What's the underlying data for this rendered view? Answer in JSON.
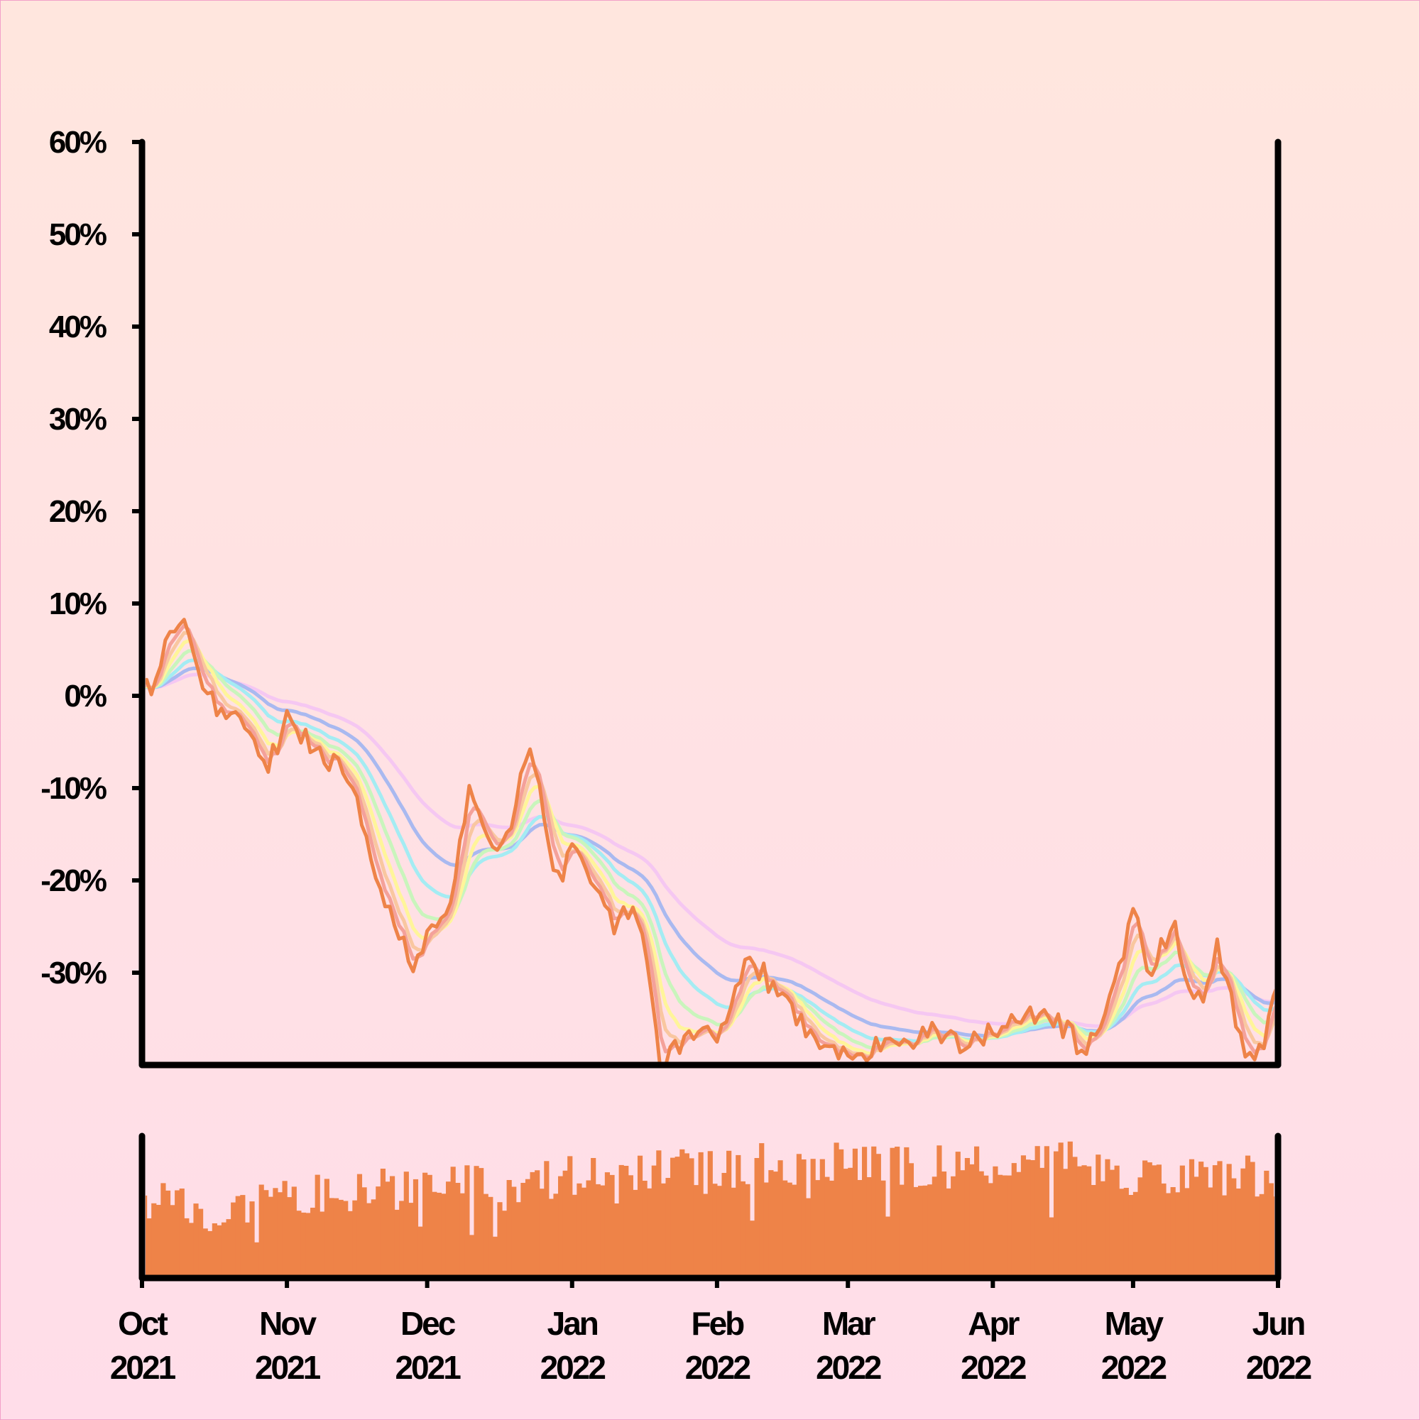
{
  "page": {
    "background_top": "#ffe6de",
    "background_bottom": "#ffdde9",
    "border": "#f2a0c8"
  },
  "chart_data": {
    "type": "line",
    "title": "",
    "xlabel": "",
    "ylabel": "",
    "x_range": [
      "2021-10-01",
      "2022-06-01"
    ],
    "ylim": [
      -40,
      60
    ],
    "y_ticks": [
      60,
      50,
      40,
      30,
      20,
      10,
      0,
      -10,
      -20,
      -30
    ],
    "y_tick_labels": [
      "60%",
      "50%",
      "40%",
      "30%",
      "20%",
      "10%",
      "0%",
      "-10%",
      "-20%",
      "-30%"
    ],
    "x_ticks": [
      {
        "date": "2021-10-01",
        "month": "Oct",
        "year": "2021"
      },
      {
        "date": "2021-11-01",
        "month": "Nov",
        "year": "2021"
      },
      {
        "date": "2021-12-01",
        "month": "Dec",
        "year": "2021"
      },
      {
        "date": "2022-01-01",
        "month": "Jan",
        "year": "2022"
      },
      {
        "date": "2022-02-01",
        "month": "Feb",
        "year": "2022"
      },
      {
        "date": "2022-03-01",
        "month": "Mar",
        "year": "2022"
      },
      {
        "date": "2022-04-01",
        "month": "Apr",
        "year": "2022"
      },
      {
        "date": "2022-05-01",
        "month": "May",
        "year": "2022"
      },
      {
        "date": "2022-06-01",
        "month": "Jun",
        "year": "2022"
      }
    ],
    "grid": false,
    "legend": "none",
    "price_anchors": [
      [
        "2021-10-01",
        2
      ],
      [
        "2021-10-03",
        1
      ],
      [
        "2021-10-06",
        6
      ],
      [
        "2021-10-09",
        8.5
      ],
      [
        "2021-10-13",
        3
      ],
      [
        "2021-10-17",
        -2
      ],
      [
        "2021-10-20",
        -1
      ],
      [
        "2021-10-24",
        -5
      ],
      [
        "2021-10-28",
        -8
      ],
      [
        "2021-11-01",
        -2
      ],
      [
        "2021-11-04",
        -4
      ],
      [
        "2021-11-07",
        -6
      ],
      [
        "2021-11-10",
        -7
      ],
      [
        "2021-11-14",
        -9
      ],
      [
        "2021-11-19",
        -17
      ],
      [
        "2021-11-24",
        -25
      ],
      [
        "2021-11-28",
        -29
      ],
      [
        "2021-12-02",
        -26
      ],
      [
        "2021-12-06",
        -22
      ],
      [
        "2021-12-10",
        -11
      ],
      [
        "2021-12-13",
        -14
      ],
      [
        "2021-12-16",
        -17
      ],
      [
        "2021-12-20",
        -12
      ],
      [
        "2021-12-23",
        -5
      ],
      [
        "2021-12-26",
        -13
      ],
      [
        "2021-12-29",
        -20
      ],
      [
        "2022-01-02",
        -16
      ],
      [
        "2022-01-06",
        -20
      ],
      [
        "2022-01-10",
        -25
      ],
      [
        "2022-01-13",
        -23
      ],
      [
        "2022-01-16",
        -25
      ],
      [
        "2022-01-20",
        -40
      ],
      [
        "2022-01-23",
        -38
      ],
      [
        "2022-01-27",
        -36
      ],
      [
        "2022-02-01",
        -37
      ],
      [
        "2022-02-05",
        -32
      ],
      [
        "2022-02-08",
        -28
      ],
      [
        "2022-02-12",
        -31
      ],
      [
        "2022-02-16",
        -32
      ],
      [
        "2022-02-20",
        -37
      ],
      [
        "2022-02-24",
        -39
      ],
      [
        "2022-03-01",
        -38
      ],
      [
        "2022-03-05",
        -39
      ],
      [
        "2022-03-10",
        -37
      ],
      [
        "2022-03-15",
        -37
      ],
      [
        "2022-03-20",
        -36
      ],
      [
        "2022-03-25",
        -38
      ],
      [
        "2022-03-30",
        -37
      ],
      [
        "2022-04-03",
        -36
      ],
      [
        "2022-04-08",
        -35
      ],
      [
        "2022-04-12",
        -34
      ],
      [
        "2022-04-16",
        -36
      ],
      [
        "2022-04-20",
        -38
      ],
      [
        "2022-04-24",
        -37
      ],
      [
        "2022-04-28",
        -30
      ],
      [
        "2022-05-01",
        -23
      ],
      [
        "2022-05-04",
        -30
      ],
      [
        "2022-05-07",
        -27
      ],
      [
        "2022-05-10",
        -25
      ],
      [
        "2022-05-13",
        -31
      ],
      [
        "2022-05-16",
        -33
      ],
      [
        "2022-05-19",
        -27
      ],
      [
        "2022-05-22",
        -33
      ],
      [
        "2022-05-25",
        -38
      ],
      [
        "2022-05-28",
        -39
      ],
      [
        "2022-06-01",
        -31
      ]
    ],
    "moving_average_windows": [
      3,
      5,
      8,
      13,
      21,
      34,
      55
    ],
    "series_colors": {
      "price": "#ee8348",
      "ma": [
        "#f4a19a",
        "#f9c7a0",
        "#fff59a",
        "#c9f5bc",
        "#a4ecf3",
        "#a9b9f0",
        "#f5c7f2"
      ]
    },
    "volume": {
      "color": "#ee8348",
      "levels": [
        {
          "date": "2021-10-01",
          "value": 0.55
        },
        {
          "date": "2021-10-15",
          "value": 0.45
        },
        {
          "date": "2021-11-01",
          "value": 0.62
        },
        {
          "date": "2021-11-15",
          "value": 0.58
        },
        {
          "date": "2021-12-01",
          "value": 0.68
        },
        {
          "date": "2021-12-15",
          "value": 0.62
        },
        {
          "date": "2022-01-01",
          "value": 0.72
        },
        {
          "date": "2022-01-15",
          "value": 0.76
        },
        {
          "date": "2022-02-01",
          "value": 0.78
        },
        {
          "date": "2022-02-15",
          "value": 0.8
        },
        {
          "date": "2022-03-01",
          "value": 0.82
        },
        {
          "date": "2022-03-15",
          "value": 0.78
        },
        {
          "date": "2022-04-01",
          "value": 0.8
        },
        {
          "date": "2022-04-15",
          "value": 0.82
        },
        {
          "date": "2022-05-01",
          "value": 0.74
        },
        {
          "date": "2022-05-15",
          "value": 0.7
        },
        {
          "date": "2022-06-01",
          "value": 0.72
        }
      ]
    }
  }
}
